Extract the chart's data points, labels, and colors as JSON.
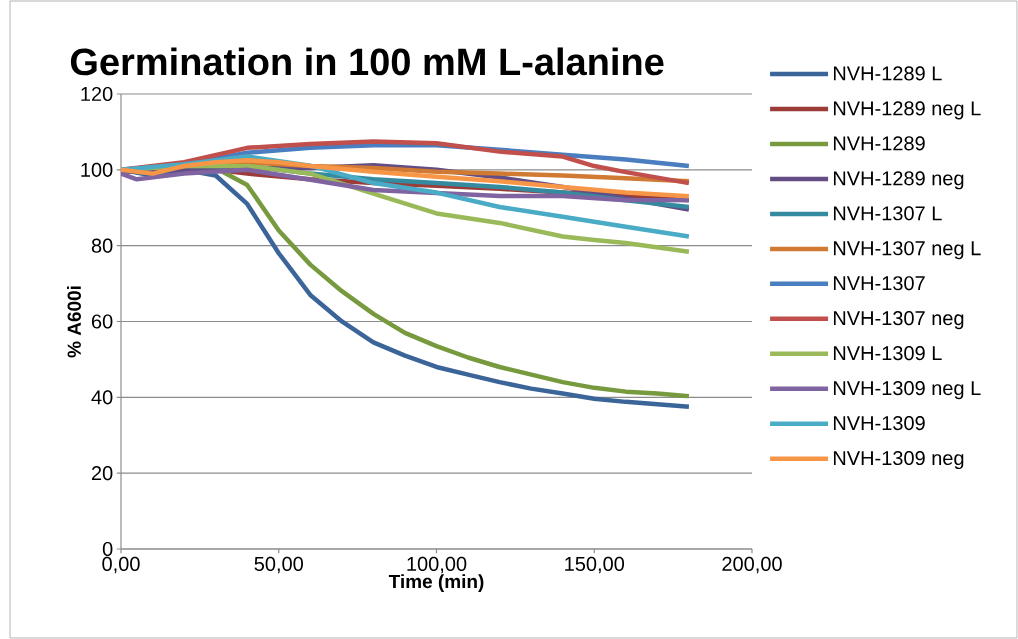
{
  "chart_data": {
    "type": "line",
    "title": "Germination in 100 mM L-alanine",
    "xlabel": "Time (min)",
    "ylabel": "% A600i",
    "xlim": [
      0,
      200
    ],
    "ylim": [
      0,
      120
    ],
    "xticks": [
      {
        "value": 0,
        "label": "0,00"
      },
      {
        "value": 50,
        "label": "50,00"
      },
      {
        "value": 100,
        "label": "100,00"
      },
      {
        "value": 150,
        "label": "150,00"
      },
      {
        "value": 200,
        "label": "200,00"
      }
    ],
    "yticks": [
      0,
      20,
      40,
      60,
      80,
      100,
      120
    ],
    "grid": "y",
    "legend": "right",
    "marker": "none",
    "line_style": "solid",
    "series": [
      {
        "name": "NVH-1289 L",
        "color": "#3b6599",
        "x": [
          0,
          10,
          20,
          30,
          40,
          50,
          60,
          70,
          80,
          90,
          100,
          110,
          120,
          130,
          140,
          150,
          160,
          170,
          180
        ],
        "values": [
          100,
          98.5,
          100,
          98.5,
          91,
          78,
          67,
          60,
          54.5,
          51,
          48,
          46,
          44,
          42.3,
          41,
          39.6,
          38.8,
          38.2,
          37.5
        ]
      },
      {
        "name": "NVH-1289 neg L",
        "color": "#9c3b38",
        "x": [
          0,
          20,
          30,
          40,
          60,
          80,
          100,
          120,
          140,
          160,
          180
        ],
        "values": [
          100,
          100,
          100,
          99,
          97.5,
          96.5,
          95.8,
          95,
          94,
          93,
          92
        ]
      },
      {
        "name": "NVH-1289",
        "color": "#779a3f",
        "x": [
          0,
          10,
          20,
          30,
          40,
          50,
          60,
          70,
          80,
          90,
          100,
          110,
          120,
          130,
          140,
          150,
          160,
          170,
          180
        ],
        "values": [
          100,
          99,
          101,
          100.5,
          96,
          84,
          75,
          68,
          62,
          57,
          53.5,
          50.5,
          48,
          46,
          44,
          42.5,
          41.5,
          41,
          40.3
        ]
      },
      {
        "name": "NVH-1289 neg",
        "color": "#634d84",
        "x": [
          0,
          20,
          40,
          60,
          80,
          100,
          120,
          140,
          160,
          180
        ],
        "values": [
          99.5,
          100,
          100.5,
          100.5,
          101.2,
          100,
          98,
          95.5,
          92.5,
          89.5
        ]
      },
      {
        "name": "NVH-1307 L",
        "color": "#348ba0",
        "x": [
          0,
          20,
          40,
          60,
          80,
          100,
          120,
          140,
          160,
          180
        ],
        "values": [
          100,
          101,
          101,
          99,
          97.5,
          96.5,
          95.5,
          94,
          92,
          90.2
        ]
      },
      {
        "name": "NVH-1307 neg L",
        "color": "#d17a33",
        "x": [
          0,
          20,
          40,
          60,
          80,
          100,
          120,
          140,
          160,
          180
        ],
        "values": [
          100,
          101,
          102,
          101,
          100.5,
          99.5,
          99,
          98.5,
          97.8,
          97
        ]
      },
      {
        "name": "NVH-1307",
        "color": "#4a7ec0",
        "x": [
          0,
          20,
          40,
          60,
          80,
          100,
          120,
          140,
          160,
          180
        ],
        "values": [
          100,
          101.5,
          104.5,
          105.8,
          106.5,
          106.5,
          105.3,
          104,
          102.7,
          101
        ]
      },
      {
        "name": "NVH-1307 neg",
        "color": "#c14f4c",
        "x": [
          0,
          20,
          40,
          60,
          80,
          100,
          120,
          140,
          150,
          160,
          180
        ],
        "values": [
          100,
          102,
          105.8,
          106.8,
          107.5,
          107,
          104.8,
          103.5,
          101,
          99.4,
          96.5
        ]
      },
      {
        "name": "NVH-1309 L",
        "color": "#9aba59",
        "x": [
          0,
          20,
          40,
          60,
          80,
          100,
          120,
          140,
          150,
          160,
          180
        ],
        "values": [
          100,
          101,
          101,
          99,
          93.7,
          88.5,
          86,
          82.4,
          81.5,
          80.7,
          78.4
        ]
      },
      {
        "name": "NVH-1309 neg L",
        "color": "#8064a2",
        "x": [
          0,
          5,
          20,
          40,
          60,
          80,
          100,
          120,
          140,
          160,
          180
        ],
        "values": [
          99,
          97.5,
          99,
          100,
          97.4,
          94.7,
          93.9,
          93.1,
          93.1,
          92,
          92
        ]
      },
      {
        "name": "NVH-1309",
        "color": "#4aabc6",
        "x": [
          0,
          20,
          40,
          60,
          80,
          100,
          120,
          140,
          160,
          180
        ],
        "values": [
          100,
          101.5,
          103.5,
          101.1,
          96.5,
          94,
          90.2,
          87.6,
          85,
          82.4
        ]
      },
      {
        "name": "NVH-1309 neg",
        "color": "#f79646",
        "x": [
          0,
          10,
          20,
          30,
          40,
          50,
          60,
          80,
          100,
          120,
          140,
          160,
          180
        ],
        "values": [
          100,
          99,
          101,
          102,
          102.5,
          102,
          101,
          99.5,
          98.2,
          97,
          95.5,
          94,
          93
        ]
      }
    ]
  }
}
